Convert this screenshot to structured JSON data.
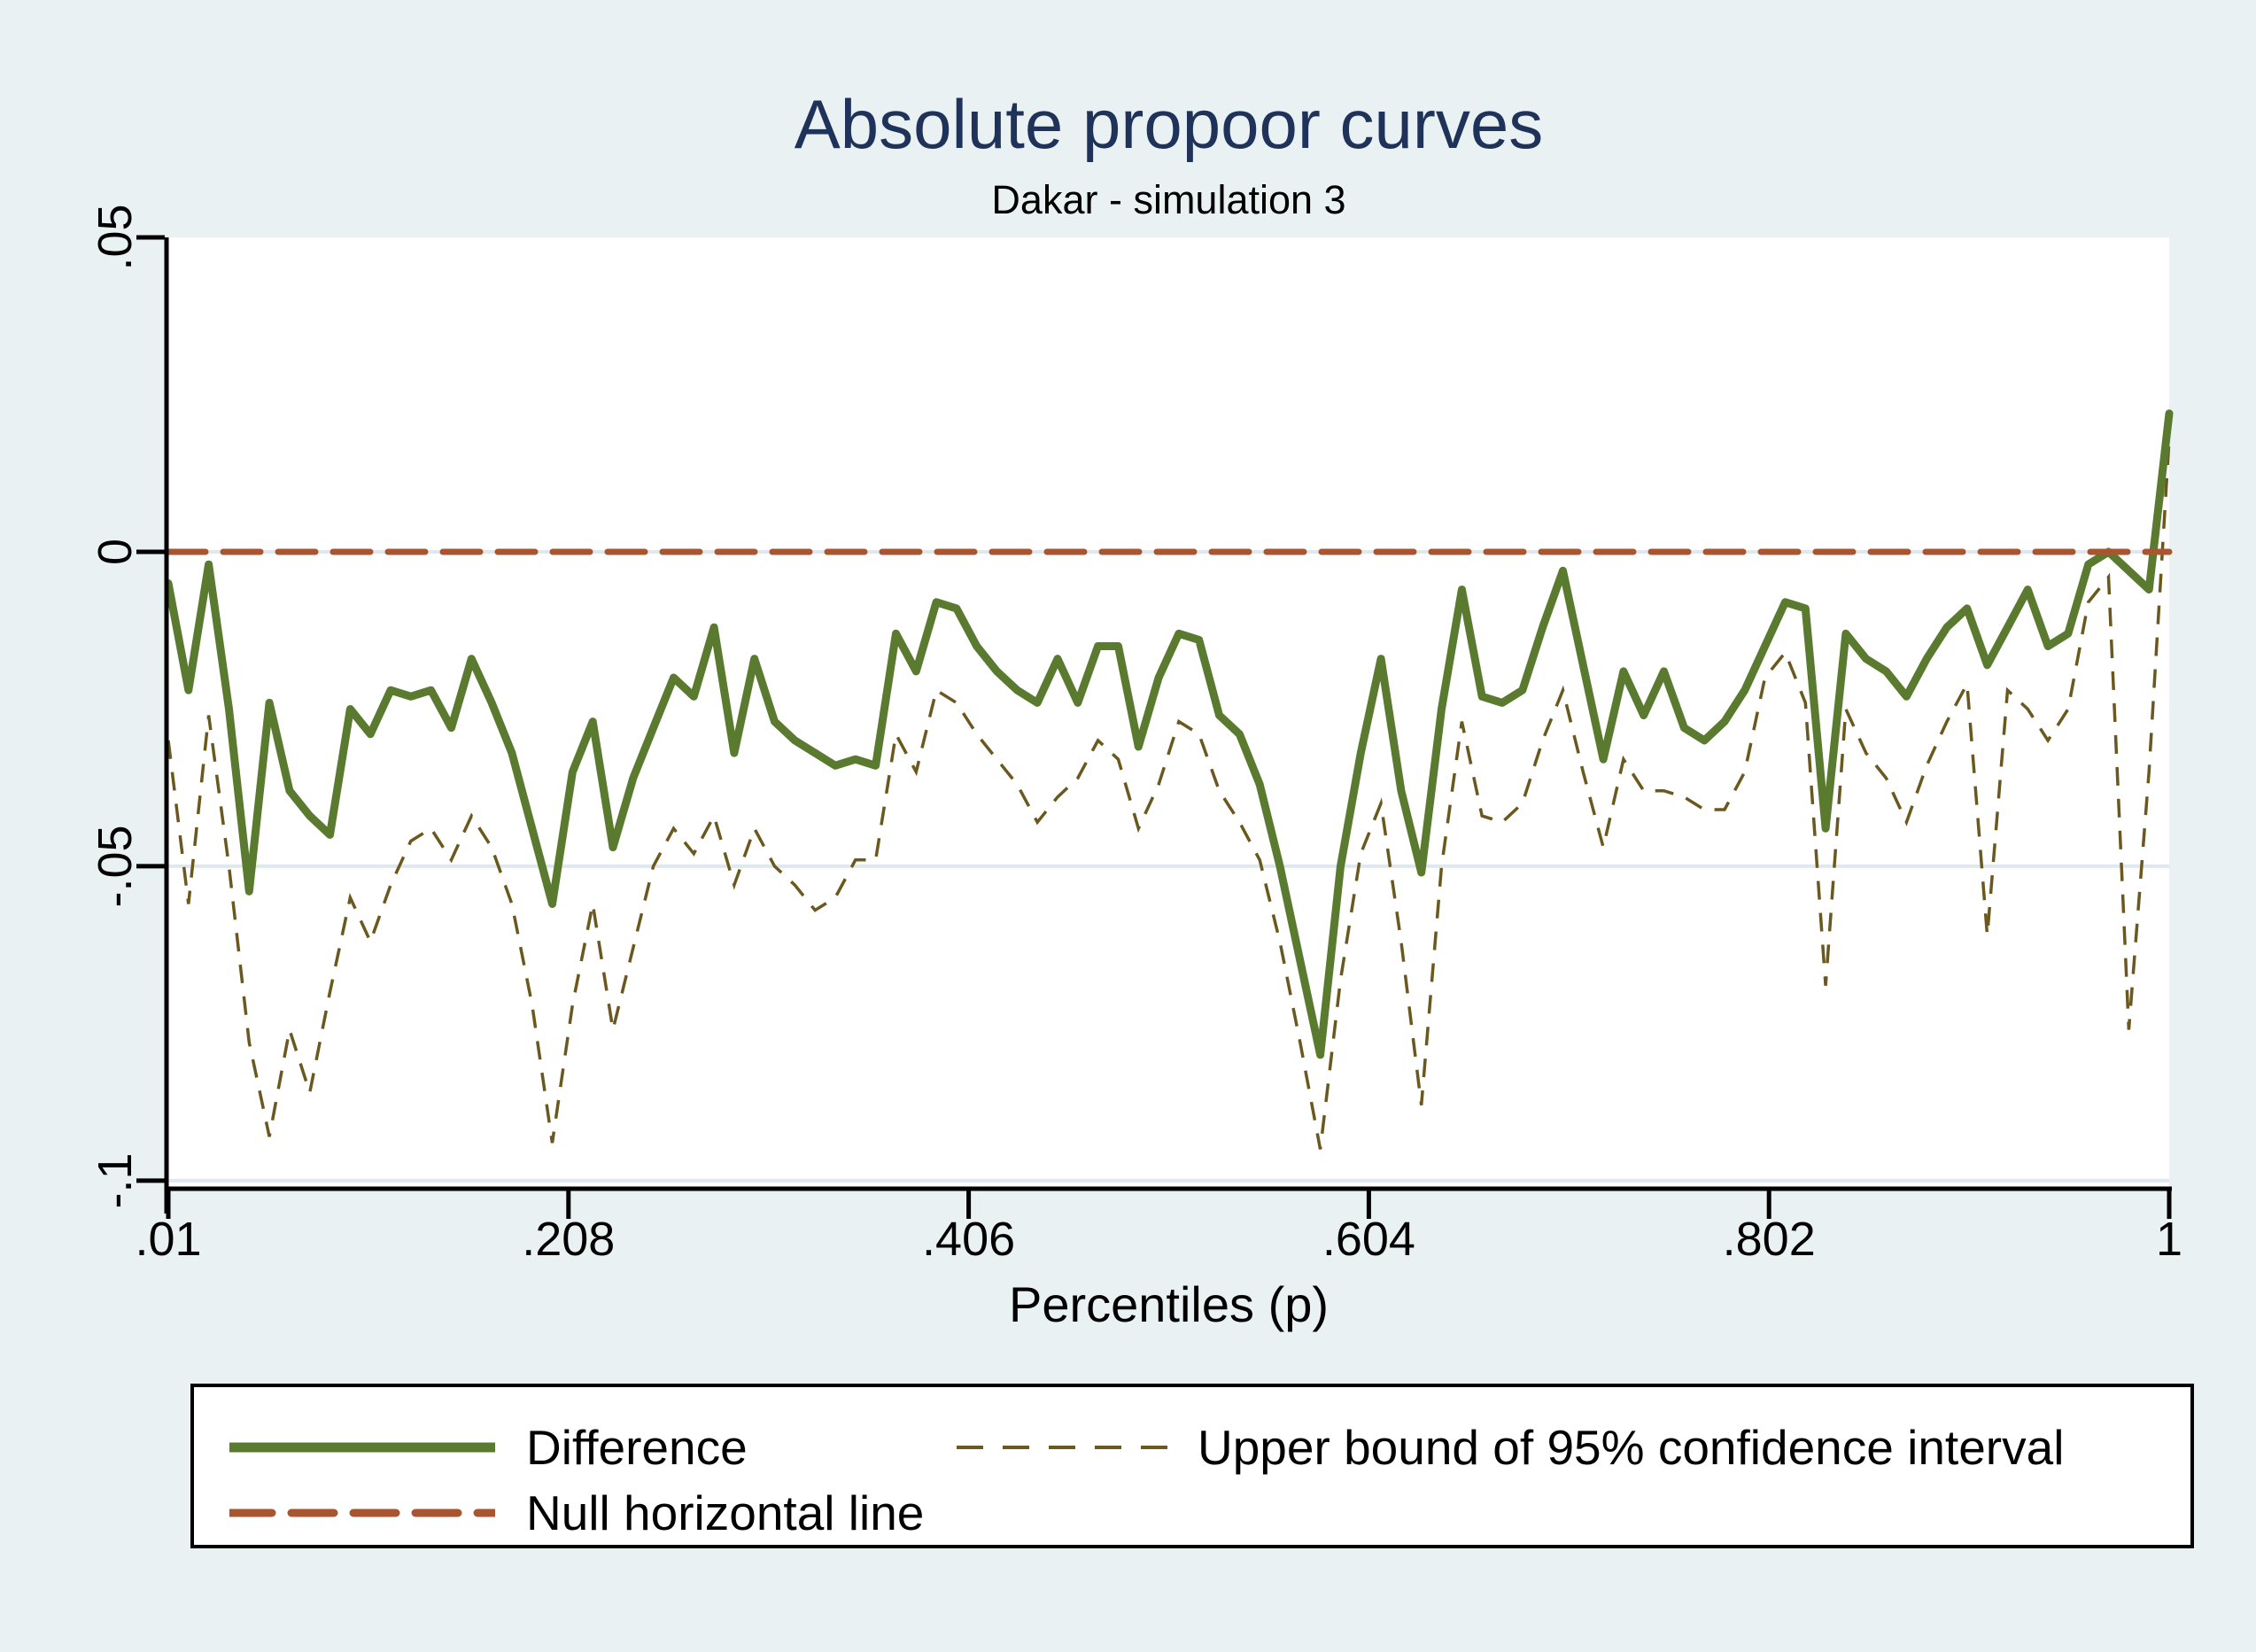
{
  "title": "Absolute propoor curves",
  "subtitle": "Dakar - simulation 3",
  "colors": {
    "background": "#EAF1F3",
    "plot_background": "#FFFFFF",
    "gridline": "#DFE9ED",
    "axis": "#000000",
    "title": "#1F3259",
    "difference_line": "#5A7B2F",
    "upper_bound_line": "#6B581E",
    "null_line": "#A85530"
  },
  "legend": {
    "items": [
      {
        "label": "Difference",
        "style": "solid-thick",
        "color": "#5A7B2F"
      },
      {
        "label": "Upper bound of 95% confidence interval",
        "style": "dashed-thin",
        "color": "#6B581E"
      },
      {
        "label": "Null horizontal line",
        "style": "dashed-thick",
        "color": "#A85530"
      }
    ]
  },
  "chart_data": {
    "type": "line",
    "title": "Absolute propoor curves",
    "subtitle": "Dakar - simulation 3",
    "xlabel": "Percentiles (p)",
    "ylabel": "",
    "xlim": [
      0.01,
      1
    ],
    "ylim": [
      -0.101,
      0.05
    ],
    "grid": "horizontal",
    "legend_position": "bottom",
    "x_ticks": [
      ".01",
      ".208",
      ".406",
      ".604",
      ".802",
      "1"
    ],
    "x_tick_values": [
      0.01,
      0.208,
      0.406,
      0.604,
      0.802,
      1
    ],
    "y_ticks": [
      ".05",
      "0",
      "-.05",
      "-.1"
    ],
    "y_tick_values": [
      0.05,
      0,
      -0.05,
      -0.1
    ],
    "x": [
      0.01,
      0.02,
      0.03,
      0.04,
      0.05,
      0.06,
      0.07,
      0.08,
      0.09,
      0.1,
      0.11,
      0.12,
      0.13,
      0.14,
      0.15,
      0.16,
      0.17,
      0.18,
      0.19,
      0.2,
      0.21,
      0.22,
      0.23,
      0.24,
      0.25,
      0.26,
      0.27,
      0.28,
      0.29,
      0.3,
      0.31,
      0.32,
      0.33,
      0.34,
      0.35,
      0.36,
      0.37,
      0.38,
      0.39,
      0.4,
      0.41,
      0.42,
      0.43,
      0.44,
      0.45,
      0.46,
      0.47,
      0.48,
      0.49,
      0.5,
      0.51,
      0.52,
      0.53,
      0.54,
      0.55,
      0.56,
      0.57,
      0.58,
      0.59,
      0.6,
      0.61,
      0.62,
      0.63,
      0.64,
      0.65,
      0.66,
      0.67,
      0.68,
      0.69,
      0.7,
      0.71,
      0.72,
      0.73,
      0.74,
      0.75,
      0.76,
      0.77,
      0.78,
      0.79,
      0.8,
      0.81,
      0.82,
      0.83,
      0.84,
      0.85,
      0.86,
      0.87,
      0.88,
      0.89,
      0.9,
      0.91,
      0.92,
      0.93,
      0.94,
      0.95,
      0.96,
      0.97,
      0.98,
      0.99,
      1.0
    ],
    "series": [
      {
        "name": "Difference",
        "color": "#5A7B2F",
        "style": "solid",
        "width": 9,
        "values": [
          -0.005,
          -0.022,
          -0.002,
          -0.025,
          -0.054,
          -0.024,
          -0.038,
          -0.042,
          -0.045,
          -0.025,
          -0.029,
          -0.022,
          -0.023,
          -0.022,
          -0.028,
          -0.017,
          -0.024,
          -0.032,
          -0.044,
          -0.056,
          -0.035,
          -0.027,
          -0.047,
          -0.036,
          -0.028,
          -0.02,
          -0.023,
          -0.012,
          -0.032,
          -0.017,
          -0.027,
          -0.03,
          -0.032,
          -0.034,
          -0.033,
          -0.034,
          -0.013,
          -0.019,
          -0.008,
          -0.009,
          -0.015,
          -0.019,
          -0.022,
          -0.024,
          -0.017,
          -0.024,
          -0.015,
          -0.015,
          -0.031,
          -0.02,
          -0.013,
          -0.014,
          -0.026,
          -0.029,
          -0.037,
          -0.05,
          -0.065,
          -0.08,
          -0.05,
          -0.032,
          -0.017,
          -0.038,
          -0.051,
          -0.025,
          -0.006,
          -0.023,
          -0.024,
          -0.022,
          -0.012,
          -0.003,
          -0.018,
          -0.033,
          -0.019,
          -0.026,
          -0.019,
          -0.028,
          -0.03,
          -0.027,
          -0.022,
          -0.015,
          -0.008,
          -0.009,
          -0.044,
          -0.013,
          -0.017,
          -0.019,
          -0.023,
          -0.017,
          -0.012,
          -0.009,
          -0.018,
          -0.012,
          -0.006,
          -0.015,
          -0.013,
          -0.002,
          0.0,
          -0.003,
          -0.006,
          0.022
        ]
      },
      {
        "name": "Upper bound of 95% confidence interval",
        "color": "#6B581E",
        "style": "dashed",
        "width": 3.5,
        "values": [
          -0.03,
          -0.056,
          -0.026,
          -0.05,
          -0.078,
          -0.093,
          -0.076,
          -0.086,
          -0.07,
          -0.055,
          -0.062,
          -0.053,
          -0.046,
          -0.044,
          -0.049,
          -0.042,
          -0.047,
          -0.056,
          -0.072,
          -0.094,
          -0.072,
          -0.056,
          -0.076,
          -0.063,
          -0.05,
          -0.044,
          -0.048,
          -0.042,
          -0.053,
          -0.044,
          -0.05,
          -0.053,
          -0.057,
          -0.055,
          -0.049,
          -0.049,
          -0.029,
          -0.035,
          -0.022,
          -0.024,
          -0.029,
          -0.033,
          -0.037,
          -0.043,
          -0.039,
          -0.036,
          -0.03,
          -0.033,
          -0.044,
          -0.037,
          -0.027,
          -0.029,
          -0.038,
          -0.043,
          -0.049,
          -0.062,
          -0.078,
          -0.095,
          -0.068,
          -0.048,
          -0.04,
          -0.062,
          -0.088,
          -0.05,
          -0.027,
          -0.042,
          -0.043,
          -0.04,
          -0.03,
          -0.022,
          -0.035,
          -0.047,
          -0.033,
          -0.038,
          -0.038,
          -0.039,
          -0.041,
          -0.041,
          -0.035,
          -0.02,
          -0.016,
          -0.024,
          -0.069,
          -0.025,
          -0.032,
          -0.036,
          -0.043,
          -0.034,
          -0.027,
          -0.021,
          -0.061,
          -0.022,
          -0.025,
          -0.03,
          -0.025,
          -0.008,
          -0.004,
          -0.076,
          -0.035,
          0.018
        ]
      },
      {
        "name": "Null horizontal line",
        "color": "#A85530",
        "style": "dashed-thick",
        "width": 7,
        "constant": 0
      }
    ]
  }
}
